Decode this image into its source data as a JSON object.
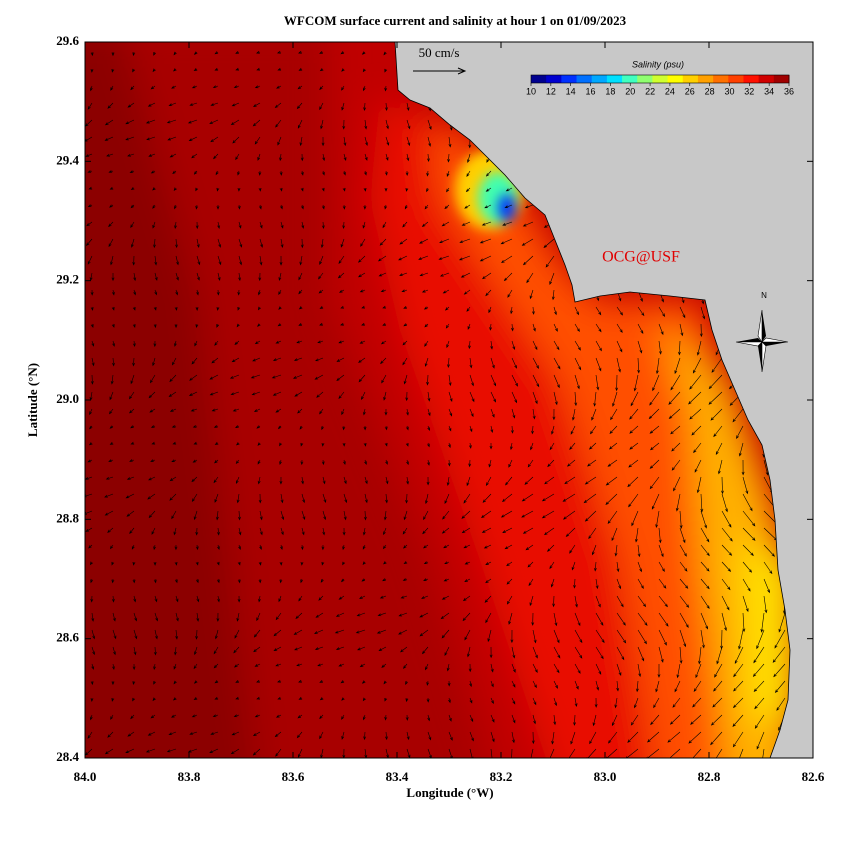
{
  "title": "WFCOM surface current and salinity at hour 1 on 01/09/2023",
  "map": {
    "xlabel": "Longitude (°W)",
    "ylabel": "Latitude (°N)",
    "xlim": [
      84.0,
      82.6
    ],
    "ylim": [
      28.4,
      29.6
    ],
    "xticks": [
      {
        "value": 84,
        "label": "84.0"
      },
      {
        "value": 83.8,
        "label": "83.8"
      },
      {
        "value": 83.6,
        "label": "83.6"
      },
      {
        "value": 83.4,
        "label": "83.4"
      },
      {
        "value": 83.2,
        "label": "83.2"
      },
      {
        "value": 83,
        "label": "83.0"
      },
      {
        "value": 82.8,
        "label": "82.8"
      },
      {
        "value": 82.6,
        "label": "82.6"
      }
    ],
    "yticks": [
      {
        "value": 28.4,
        "label": "28.4"
      },
      {
        "value": 28.6,
        "label": "28.6"
      },
      {
        "value": 28.8,
        "label": "28.8"
      },
      {
        "value": 29,
        "label": "29.0"
      },
      {
        "value": 29.2,
        "label": "29.2"
      },
      {
        "value": 29.4,
        "label": "29.4"
      },
      {
        "value": 29.6,
        "label": "29.6"
      }
    ]
  },
  "colorbar": {
    "title": "Salinity (psu)",
    "lim": [
      10,
      36
    ],
    "ticks": [
      10,
      12,
      14,
      16,
      18,
      20,
      22,
      24,
      26,
      28,
      30,
      32,
      34,
      36
    ],
    "colors": [
      "#00008f",
      "#0000d0",
      "#0030ff",
      "#0070ff",
      "#00a8ff",
      "#00e0ff",
      "#40ffc0",
      "#90ff70",
      "#d0ff30",
      "#ffff00",
      "#ffd000",
      "#ffa000",
      "#ff7000",
      "#ff4000",
      "#ff1000",
      "#d00000",
      "#a00000"
    ]
  },
  "scale_label": "50 cm/s",
  "credit": "OCG@USF",
  "compass": "N"
}
